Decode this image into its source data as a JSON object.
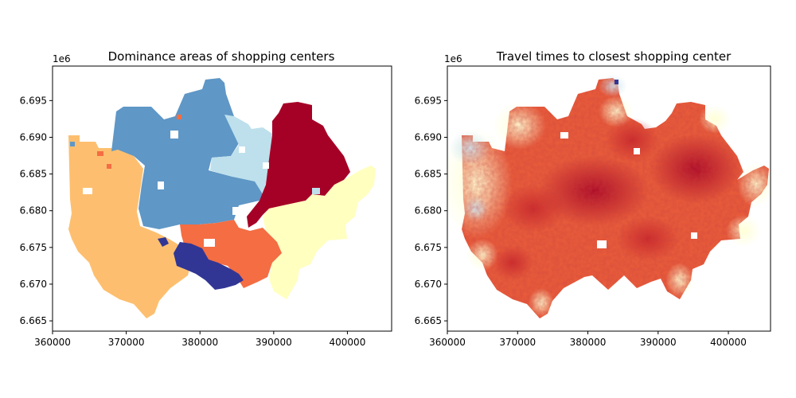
{
  "chart_data": [
    {
      "type": "heatmap",
      "title": "Dominance areas of shopping centers",
      "xlabel": "",
      "ylabel": "",
      "xlim": [
        360000,
        406000
      ],
      "ylim": [
        6663600,
        6699700
      ],
      "x_ticks": [
        360000,
        370000,
        380000,
        390000,
        400000
      ],
      "x_tick_labels": [
        "360000",
        "370000",
        "380000",
        "390000",
        "400000"
      ],
      "y_ticks": [
        6665000,
        6670000,
        6675000,
        6680000,
        6685000,
        6690000,
        6695000
      ],
      "y_tick_labels": [
        "6.665",
        "6.670",
        "6.675",
        "6.680",
        "6.685",
        "6.690",
        "6.695"
      ],
      "y_offset_label": "1e6",
      "grid": false,
      "colormap": "RdYlBu (categorical)",
      "regions": [
        {
          "color": "#fdbf6f",
          "anchor": [
            367000,
            6678000
          ],
          "description": "western area"
        },
        {
          "color": "#5f97c6",
          "anchor": [
            378000,
            6687000
          ],
          "description": "north-central area"
        },
        {
          "color": "#bde0ec",
          "anchor": [
            386500,
            6688000
          ],
          "description": "north-central-east area"
        },
        {
          "color": "#a50026",
          "anchor": [
            393500,
            6687000
          ],
          "description": "north-east area"
        },
        {
          "color": "#ffffc0",
          "anchor": [
            395500,
            6677000
          ],
          "description": "south-east area"
        },
        {
          "color": "#f46d43",
          "anchor": [
            385000,
            6674500
          ],
          "description": "south-central area"
        },
        {
          "color": "#313695",
          "anchor": [
            378500,
            6673000
          ],
          "description": "south area"
        }
      ]
    },
    {
      "type": "heatmap",
      "title": "Travel times to closest shopping center",
      "xlabel": "",
      "ylabel": "",
      "xlim": [
        360000,
        406000
      ],
      "ylim": [
        6663600,
        6699700
      ],
      "x_ticks": [
        360000,
        370000,
        380000,
        390000,
        400000
      ],
      "x_tick_labels": [
        "360000",
        "370000",
        "380000",
        "390000",
        "400000"
      ],
      "y_ticks": [
        6665000,
        6670000,
        6675000,
        6680000,
        6685000,
        6690000,
        6695000
      ],
      "y_tick_labels": [
        "6.665",
        "6.670",
        "6.675",
        "6.680",
        "6.685",
        "6.690",
        "6.695"
      ],
      "y_offset_label": "1e6",
      "grid": false,
      "colormap": "RdYlBu (short travel time = dark red, long = light yellow/blue)",
      "hotspots": [
        {
          "anchor": [
            381500,
            6682500
          ],
          "level": "short"
        },
        {
          "anchor": [
            391500,
            6685500
          ],
          "level": "short"
        },
        {
          "anchor": [
            373000,
            6680000
          ],
          "level": "short"
        },
        {
          "anchor": [
            386000,
            6676000
          ],
          "level": "short"
        }
      ]
    }
  ]
}
